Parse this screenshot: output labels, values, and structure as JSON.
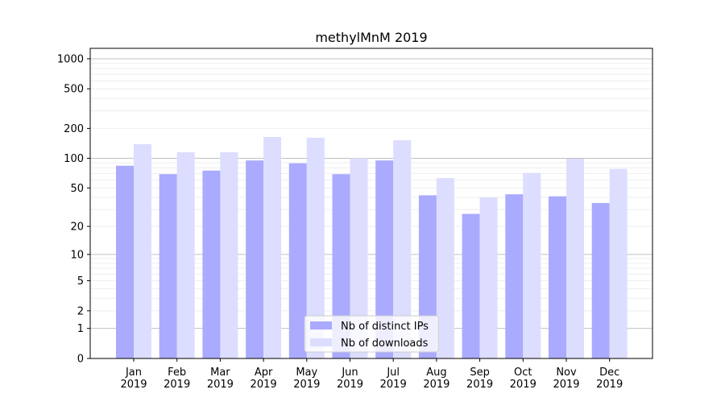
{
  "chart_data": {
    "type": "bar",
    "title": "methylMnM 2019",
    "xlabel": "",
    "ylabel": "",
    "yscale": "symlog (log10(v+1))",
    "ylim": [
      0,
      1270
    ],
    "yticks": [
      0,
      1,
      2,
      5,
      10,
      20,
      50,
      100,
      200,
      500,
      1000
    ],
    "grid": true,
    "legend_position": "bottom-center",
    "categories": [
      "Jan\n2019",
      "Feb\n2019",
      "Mar\n2019",
      "Apr\n2019",
      "May\n2019",
      "Jun\n2019",
      "Jul\n2019",
      "Aug\n2019",
      "Sep\n2019",
      "Oct\n2019",
      "Nov\n2019",
      "Dec\n2019"
    ],
    "series": [
      {
        "name": "Nb of distinct IPs",
        "color": "#aaaaff",
        "values": [
          84,
          69,
          75,
          95,
          89,
          69,
          95,
          42,
          27,
          43,
          41,
          35
        ]
      },
      {
        "name": "Nb of downloads",
        "color": "#ddddff",
        "values": [
          139,
          115,
          115,
          164,
          161,
          100,
          152,
          63,
          40,
          71,
          99,
          78
        ]
      }
    ]
  }
}
